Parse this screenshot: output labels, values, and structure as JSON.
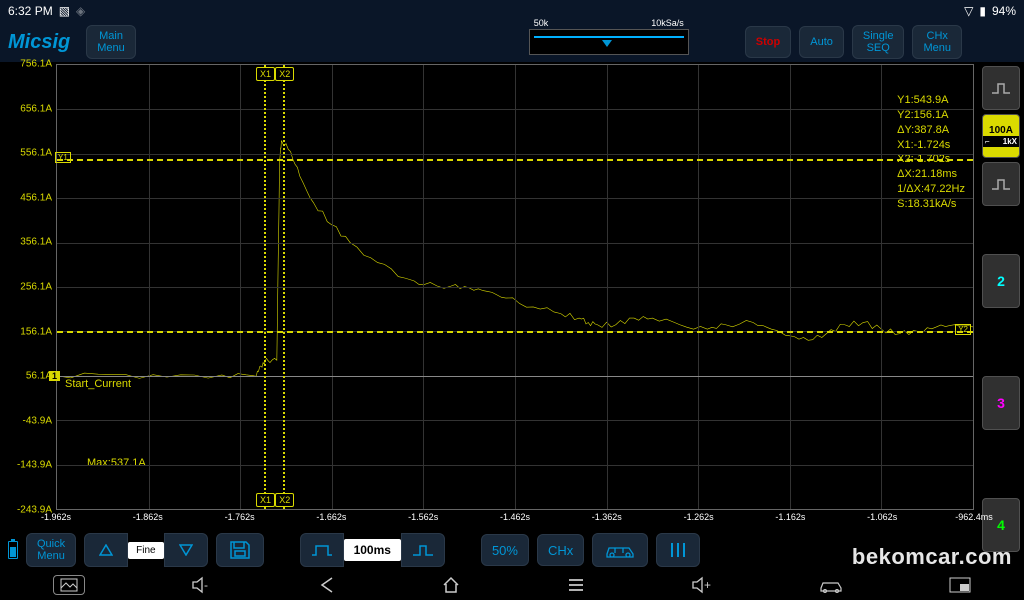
{
  "status": {
    "time": "6:32 PM",
    "battery_pct": "94%"
  },
  "logo": "Micsig",
  "toolbar_top": {
    "main_menu_l1": "Main",
    "main_menu_l2": "Menu",
    "timebase_left": "50k",
    "timebase_right": "10kSa/s",
    "stop": "Stop",
    "auto": "Auto",
    "single_l1": "Single",
    "single_l2": "SEQ",
    "chx_l1": "CHx",
    "chx_l2": "Menu"
  },
  "channels": {
    "ch1_scale": "100A",
    "ch1_probe": "1kX",
    "ch2": "2",
    "ch3": "3",
    "ch4": "4"
  },
  "y_axis": {
    "ticks": [
      "756.1A",
      "656.1A",
      "556.1A",
      "456.1A",
      "356.1A",
      "256.1A",
      "156.1A",
      "56.1A",
      "-43.9A",
      "-143.9A",
      "-243.9A"
    ]
  },
  "x_axis": {
    "ticks": [
      "-1.962s",
      "-1.862s",
      "-1.762s",
      "-1.662s",
      "-1.562s",
      "-1.462s",
      "-1.362s",
      "-1.262s",
      "-1.162s",
      "-1.062s",
      "-962.4ms"
    ]
  },
  "cursors": {
    "x1_label": "X1",
    "x2_label": "X2",
    "y1_label": "Y1",
    "y2_label": "Y2",
    "x1_pct": 22.6,
    "x2_pct": 24.7,
    "y1_pct": 21.2,
    "y2_pct": 60.0
  },
  "readout": {
    "l1": "Y1:543.9A",
    "l2": "Y2:156.1A",
    "l3": "ΔY:387.8A",
    "l4": "X1:-1.724s",
    "l5": "X2:-1.702s",
    "l6": "ΔX:21.18ms",
    "l7": "1/ΔX:47.22Hz",
    "l8": "S:18.31kA/s"
  },
  "trace": {
    "label": "Start_Current",
    "ch_tag": "1",
    "max_label": "Max:537.1A",
    "color": "#dada00",
    "ch1_zero_pct": 70.0,
    "points": [
      [
        0,
        70.0
      ],
      [
        6,
        69.7
      ],
      [
        12,
        70.3
      ],
      [
        18,
        69.8
      ],
      [
        21.5,
        70.0
      ],
      [
        22.0,
        69.0
      ],
      [
        22.5,
        67.0
      ],
      [
        23.0,
        66.5
      ],
      [
        24.0,
        66.5
      ],
      [
        24.3,
        21.5
      ],
      [
        24.5,
        17.0
      ],
      [
        25.5,
        19.5
      ],
      [
        26.5,
        25.0
      ],
      [
        28,
        31.0
      ],
      [
        30,
        36.0
      ],
      [
        32,
        40.0
      ],
      [
        35,
        44.5
      ],
      [
        38,
        48.0
      ],
      [
        40,
        49.5
      ],
      [
        43,
        49.8
      ],
      [
        45,
        50.2
      ],
      [
        47,
        51.0
      ],
      [
        49,
        52.5
      ],
      [
        52,
        54.5
      ],
      [
        55,
        56.0
      ],
      [
        57,
        57.0
      ],
      [
        58,
        58.0
      ],
      [
        59,
        58.5
      ],
      [
        61,
        58.5
      ],
      [
        63,
        57.0
      ],
      [
        65,
        57.0
      ],
      [
        68,
        58.5
      ],
      [
        71,
        59.5
      ],
      [
        73,
        58.5
      ],
      [
        76,
        58.0
      ],
      [
        78,
        59.5
      ],
      [
        80,
        61.0
      ],
      [
        82,
        62.0
      ],
      [
        84,
        60.5
      ],
      [
        86,
        58.5
      ],
      [
        88,
        58.0
      ],
      [
        90,
        59.5
      ],
      [
        92,
        60.5
      ],
      [
        94,
        60.0
      ],
      [
        96,
        59.0
      ],
      [
        98,
        58.5
      ],
      [
        100,
        59.0
      ]
    ]
  },
  "toolbar_bottom": {
    "quick_l1": "Quick",
    "quick_l2": "Menu",
    "fine": "Fine",
    "time_scale": "100ms",
    "fifty": "50%",
    "chx": "CHx"
  },
  "watermark": "bekomcar.com",
  "colors": {
    "bg": "#000000",
    "panel": "#0a1628",
    "trace": "#dada00",
    "cyan": "#00d0ff",
    "grid": "#333333",
    "axis": "#888888",
    "btn_text": "#0096d6"
  }
}
